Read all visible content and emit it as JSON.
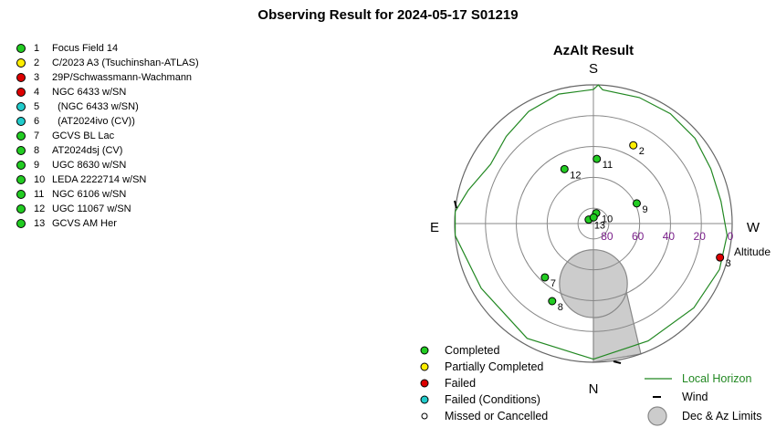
{
  "title": "Observing Result for 2024-05-17  S01219",
  "colors": {
    "completed": "#22cc22",
    "partial": "#ffee00",
    "failed": "#dd0000",
    "failed_conditions": "#22cccc",
    "missed": "#ffffff",
    "horizon": "#228822",
    "limits": "#cccccc",
    "altitude_label": "#7a1f8a"
  },
  "targets": [
    {
      "num": "1",
      "name": "Focus Field 14",
      "status": "completed"
    },
    {
      "num": "2",
      "name": "C/2023 A3 (Tsuchinshan-ATLAS)",
      "status": "partial"
    },
    {
      "num": "3",
      "name": "29P/Schwassmann-Wachmann",
      "status": "failed"
    },
    {
      "num": "4",
      "name": "NGC 6433 w/SN",
      "status": "failed"
    },
    {
      "num": "5",
      "name": "  (NGC 6433 w/SN)",
      "status": "failed_conditions"
    },
    {
      "num": "6",
      "name": "  (AT2024ivo (CV))",
      "status": "failed_conditions"
    },
    {
      "num": "7",
      "name": "GCVS BL Lac",
      "status": "completed"
    },
    {
      "num": "8",
      "name": "AT2024dsj (CV)",
      "status": "completed"
    },
    {
      "num": "9",
      "name": "UGC 8630 w/SN",
      "status": "completed"
    },
    {
      "num": "10",
      "name": "LEDA 2222714 w/SN",
      "status": "completed"
    },
    {
      "num": "11",
      "name": "NGC 6106 w/SN",
      "status": "completed"
    },
    {
      "num": "12",
      "name": "UGC 11067 w/SN",
      "status": "completed"
    },
    {
      "num": "13",
      "name": "GCVS AM Her",
      "status": "completed"
    }
  ],
  "chart_data": {
    "type": "scatter",
    "title": "AzAlt Result",
    "coordinate_system": "polar azimuth/altitude, south at top, west at right",
    "directions": {
      "top": "S",
      "bottom": "N",
      "left": "E",
      "right": "W"
    },
    "altitude_label": "Altitude",
    "altitude_rings": [
      80,
      60,
      40,
      20,
      0
    ],
    "points": [
      {
        "label": "2",
        "status": "partial",
        "az": 207,
        "alt": 33
      },
      {
        "label": "3",
        "status": "failed",
        "az": 285,
        "alt": 5
      },
      {
        "label": "7",
        "status": "completed",
        "az": 42,
        "alt": 43
      },
      {
        "label": "8",
        "status": "completed",
        "az": 28,
        "alt": 33
      },
      {
        "label": "9",
        "status": "completed",
        "az": 245,
        "alt": 59
      },
      {
        "label": "10",
        "status": "completed",
        "az": 195,
        "alt": 83
      },
      {
        "label": "11",
        "status": "completed",
        "az": 183,
        "alt": 48
      },
      {
        "label": "12",
        "status": "completed",
        "az": 152,
        "alt": 50
      },
      {
        "label": "13",
        "status": "completed",
        "az": 130,
        "alt": 86
      },
      {
        "label": "",
        "status": "completed",
        "az": 182,
        "alt": 86
      }
    ],
    "local_horizon_alt_by_az": [
      [
        0,
        2
      ],
      [
        30,
        4
      ],
      [
        60,
        6
      ],
      [
        85,
        0
      ],
      [
        95,
        0
      ],
      [
        105,
        6
      ],
      [
        120,
        13
      ],
      [
        135,
        10
      ],
      [
        150,
        6
      ],
      [
        165,
        3
      ],
      [
        180,
        3
      ],
      [
        182,
        0
      ],
      [
        184,
        3
      ],
      [
        200,
        3
      ],
      [
        215,
        3
      ],
      [
        230,
        4
      ],
      [
        245,
        6
      ],
      [
        260,
        6
      ],
      [
        275,
        3
      ],
      [
        290,
        3
      ],
      [
        310,
        5
      ],
      [
        335,
        6
      ],
      [
        360,
        2
      ]
    ],
    "dec_az_limits": {
      "pole_alt": 51,
      "radius_deg": 22,
      "wedge_az": [
        340,
        360
      ]
    },
    "wind": "0",
    "legend": [
      {
        "label": "Completed",
        "status": "completed"
      },
      {
        "label": "Partially Completed",
        "status": "partial"
      },
      {
        "label": "Failed",
        "status": "failed"
      },
      {
        "label": "Failed (Conditions)",
        "status": "failed_conditions"
      },
      {
        "label": "Missed or Cancelled",
        "status": "missed"
      }
    ],
    "legend_extra": [
      {
        "label": "Local Horizon",
        "symbol": "line"
      },
      {
        "label": "Wind",
        "symbol": "dash"
      },
      {
        "label": "Dec & Az Limits",
        "symbol": "disc"
      }
    ]
  }
}
